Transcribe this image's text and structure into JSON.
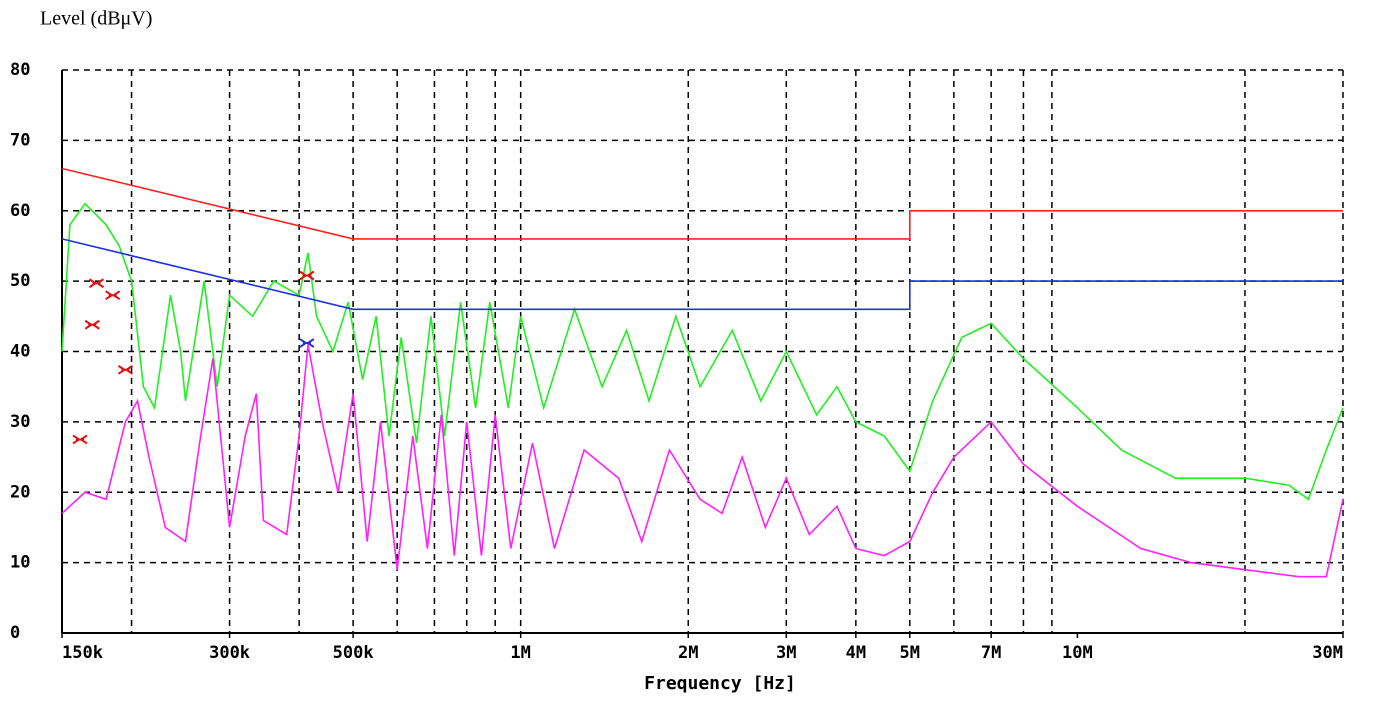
{
  "chart_data": {
    "type": "line",
    "title": "Level (dBμV)",
    "x_label": "Frequency [Hz]",
    "x_scale": "log",
    "xlim": [
      150000,
      30000000
    ],
    "ylim": [
      0,
      80
    ],
    "yticks": [
      0,
      10,
      20,
      30,
      40,
      50,
      60,
      70,
      80
    ],
    "xticks": [
      {
        "value": 150000,
        "label": "150k"
      },
      {
        "value": 300000,
        "label": "300k"
      },
      {
        "value": 500000,
        "label": "500k"
      },
      {
        "value": 1000000,
        "label": "1M"
      },
      {
        "value": 2000000,
        "label": "2M"
      },
      {
        "value": 3000000,
        "label": "3M"
      },
      {
        "value": 4000000,
        "label": "4M"
      },
      {
        "value": 5000000,
        "label": "5M"
      },
      {
        "value": 7000000,
        "label": "7M"
      },
      {
        "value": 10000000,
        "label": "10M"
      },
      {
        "value": 30000000,
        "label": "30M"
      }
    ],
    "xgrid": [
      200000,
      300000,
      400000,
      500000,
      600000,
      700000,
      800000,
      900000,
      1000000,
      2000000,
      3000000,
      4000000,
      5000000,
      6000000,
      7000000,
      8000000,
      9000000,
      20000000,
      30000000
    ],
    "grid": true,
    "series": [
      {
        "style": "line",
        "color": "#20f020",
        "x": [
          150000,
          155000,
          165000,
          180000,
          190000,
          200000,
          210000,
          220000,
          235000,
          245000,
          250000,
          270000,
          285000,
          300000,
          330000,
          360000,
          400000,
          415000,
          430000,
          460000,
          490000,
          520000,
          550000,
          580000,
          610000,
          650000,
          690000,
          730000,
          780000,
          830000,
          880000,
          950000,
          1000000,
          1100000,
          1250000,
          1400000,
          1550000,
          1700000,
          1900000,
          2100000,
          2400000,
          2700000,
          3000000,
          3400000,
          3700000,
          4000000,
          4500000,
          5000000,
          5500000,
          6200000,
          7000000,
          8000000,
          10000000,
          12000000,
          15000000,
          20000000,
          24000000,
          26000000,
          28000000,
          30000000
        ],
        "values": [
          40,
          58,
          61,
          58,
          55,
          50,
          35,
          32,
          48,
          40,
          33,
          50,
          35,
          48,
          45,
          50,
          48,
          54,
          45,
          40,
          47,
          36,
          45,
          28,
          42,
          27,
          45,
          28,
          47,
          32,
          47,
          32,
          45,
          32,
          46,
          35,
          43,
          33,
          45,
          35,
          43,
          33,
          40,
          31,
          35,
          30,
          28,
          23,
          33,
          42,
          44,
          39,
          32,
          26,
          22,
          22,
          21,
          19,
          26,
          32
        ]
      },
      {
        "style": "line",
        "color": "#ff20ff",
        "x": [
          150000,
          165000,
          180000,
          195000,
          205000,
          215000,
          230000,
          250000,
          265000,
          280000,
          300000,
          320000,
          335000,
          345000,
          380000,
          400000,
          415000,
          440000,
          470000,
          500000,
          530000,
          560000,
          600000,
          640000,
          680000,
          720000,
          760000,
          800000,
          850000,
          900000,
          960000,
          1050000,
          1150000,
          1300000,
          1500000,
          1650000,
          1850000,
          2100000,
          2300000,
          2500000,
          2750000,
          3000000,
          3300000,
          3700000,
          4000000,
          4500000,
          5000000,
          5500000,
          6000000,
          7000000,
          8000000,
          10000000,
          13000000,
          16000000,
          20000000,
          25000000,
          28000000,
          30000000
        ],
        "values": [
          17,
          20,
          19,
          30,
          33,
          25,
          15,
          13,
          27,
          39,
          15,
          28,
          34,
          16,
          14,
          28,
          41,
          30,
          20,
          34,
          13,
          30,
          9,
          28,
          12,
          31,
          11,
          30,
          11,
          31,
          12,
          27,
          12,
          26,
          22,
          13,
          26,
          19,
          17,
          25,
          15,
          22,
          14,
          18,
          12,
          11,
          13,
          20,
          25,
          30,
          24,
          18,
          12,
          10,
          9,
          8,
          8,
          19
        ]
      },
      {
        "style": "line",
        "color": "#ff2020",
        "x": [
          150000,
          500000,
          5000000,
          5000000,
          30000000
        ],
        "values": [
          66,
          56,
          56,
          60,
          60
        ]
      },
      {
        "style": "line",
        "color": "#2030e0",
        "x": [
          150000,
          500000,
          5000000,
          5000000,
          30000000
        ],
        "values": [
          56,
          46,
          46,
          50,
          50
        ]
      },
      {
        "style": "marker",
        "color": "#e01010",
        "x": [
          161600,
          170000,
          173000,
          185000,
          195000,
          413000
        ],
        "values": [
          27.5,
          43.8,
          49.7,
          48,
          37.4,
          50.8
        ]
      },
      {
        "style": "marker",
        "color": "#2030e0",
        "x": [
          413000
        ],
        "values": [
          41.2
        ]
      }
    ]
  }
}
